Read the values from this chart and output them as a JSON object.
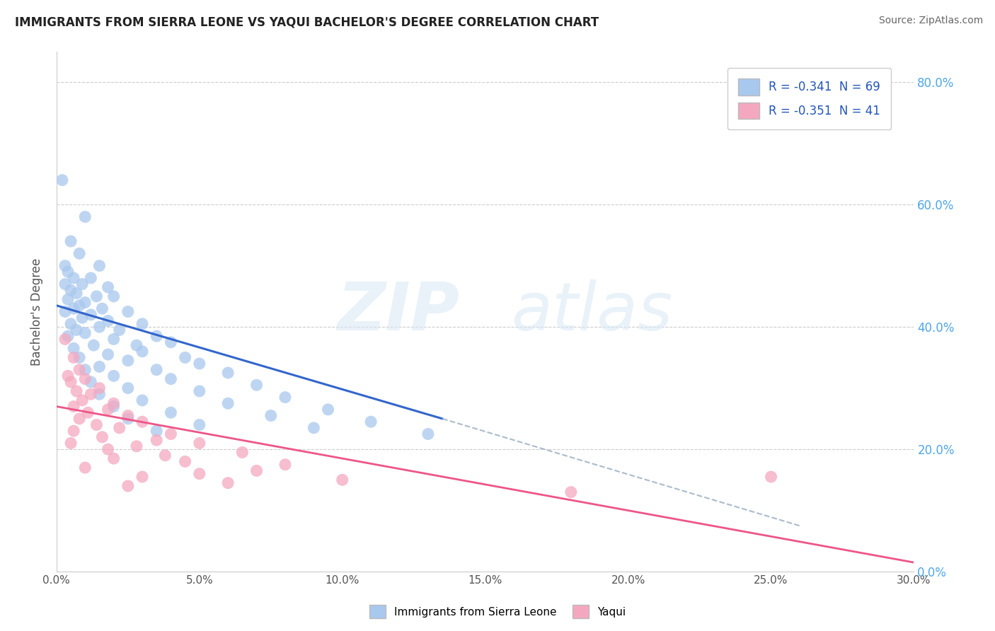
{
  "title": "IMMIGRANTS FROM SIERRA LEONE VS YAQUI BACHELOR'S DEGREE CORRELATION CHART",
  "source": "Source: ZipAtlas.com",
  "ylabel": "Bachelor's Degree",
  "legend_blue_label": "Immigrants from Sierra Leone",
  "legend_pink_label": "Yaqui",
  "R_blue": -0.341,
  "N_blue": 69,
  "R_pink": -0.351,
  "N_pink": 41,
  "watermark_zip": "ZIP",
  "watermark_atlas": "atlas",
  "blue_color": "#A8C8EE",
  "pink_color": "#F4A8C0",
  "blue_line_color": "#3366CC",
  "pink_line_color": "#EE5588",
  "dash_color": "#AABBCC",
  "blue_scatter": [
    [
      0.2,
      64.0
    ],
    [
      1.0,
      58.0
    ],
    [
      0.5,
      54.0
    ],
    [
      0.8,
      52.0
    ],
    [
      0.3,
      50.0
    ],
    [
      1.5,
      50.0
    ],
    [
      0.4,
      49.0
    ],
    [
      0.6,
      48.0
    ],
    [
      1.2,
      48.0
    ],
    [
      0.9,
      47.0
    ],
    [
      0.3,
      47.0
    ],
    [
      1.8,
      46.5
    ],
    [
      0.5,
      46.0
    ],
    [
      0.7,
      45.5
    ],
    [
      1.4,
      45.0
    ],
    [
      2.0,
      45.0
    ],
    [
      0.4,
      44.5
    ],
    [
      1.0,
      44.0
    ],
    [
      0.8,
      43.5
    ],
    [
      1.6,
      43.0
    ],
    [
      0.6,
      43.0
    ],
    [
      2.5,
      42.5
    ],
    [
      0.3,
      42.5
    ],
    [
      1.2,
      42.0
    ],
    [
      0.9,
      41.5
    ],
    [
      1.8,
      41.0
    ],
    [
      3.0,
      40.5
    ],
    [
      0.5,
      40.5
    ],
    [
      1.5,
      40.0
    ],
    [
      2.2,
      39.5
    ],
    [
      0.7,
      39.5
    ],
    [
      1.0,
      39.0
    ],
    [
      3.5,
      38.5
    ],
    [
      0.4,
      38.5
    ],
    [
      2.0,
      38.0
    ],
    [
      4.0,
      37.5
    ],
    [
      1.3,
      37.0
    ],
    [
      2.8,
      37.0
    ],
    [
      0.6,
      36.5
    ],
    [
      3.0,
      36.0
    ],
    [
      1.8,
      35.5
    ],
    [
      4.5,
      35.0
    ],
    [
      0.8,
      35.0
    ],
    [
      2.5,
      34.5
    ],
    [
      5.0,
      34.0
    ],
    [
      1.5,
      33.5
    ],
    [
      3.5,
      33.0
    ],
    [
      1.0,
      33.0
    ],
    [
      6.0,
      32.5
    ],
    [
      2.0,
      32.0
    ],
    [
      4.0,
      31.5
    ],
    [
      1.2,
      31.0
    ],
    [
      7.0,
      30.5
    ],
    [
      2.5,
      30.0
    ],
    [
      5.0,
      29.5
    ],
    [
      1.5,
      29.0
    ],
    [
      8.0,
      28.5
    ],
    [
      3.0,
      28.0
    ],
    [
      6.0,
      27.5
    ],
    [
      2.0,
      27.0
    ],
    [
      9.5,
      26.5
    ],
    [
      4.0,
      26.0
    ],
    [
      7.5,
      25.5
    ],
    [
      2.5,
      25.0
    ],
    [
      11.0,
      24.5
    ],
    [
      5.0,
      24.0
    ],
    [
      9.0,
      23.5
    ],
    [
      3.5,
      23.0
    ],
    [
      13.0,
      22.5
    ]
  ],
  "pink_scatter": [
    [
      0.3,
      38.0
    ],
    [
      0.6,
      35.0
    ],
    [
      0.8,
      33.0
    ],
    [
      0.4,
      32.0
    ],
    [
      1.0,
      31.5
    ],
    [
      0.5,
      31.0
    ],
    [
      1.5,
      30.0
    ],
    [
      0.7,
      29.5
    ],
    [
      1.2,
      29.0
    ],
    [
      0.9,
      28.0
    ],
    [
      2.0,
      27.5
    ],
    [
      0.6,
      27.0
    ],
    [
      1.8,
      26.5
    ],
    [
      1.1,
      26.0
    ],
    [
      2.5,
      25.5
    ],
    [
      0.8,
      25.0
    ],
    [
      3.0,
      24.5
    ],
    [
      1.4,
      24.0
    ],
    [
      2.2,
      23.5
    ],
    [
      0.6,
      23.0
    ],
    [
      4.0,
      22.5
    ],
    [
      1.6,
      22.0
    ],
    [
      3.5,
      21.5
    ],
    [
      0.5,
      21.0
    ],
    [
      5.0,
      21.0
    ],
    [
      2.8,
      20.5
    ],
    [
      1.8,
      20.0
    ],
    [
      6.5,
      19.5
    ],
    [
      3.8,
      19.0
    ],
    [
      2.0,
      18.5
    ],
    [
      4.5,
      18.0
    ],
    [
      8.0,
      17.5
    ],
    [
      1.0,
      17.0
    ],
    [
      7.0,
      16.5
    ],
    [
      5.0,
      16.0
    ],
    [
      3.0,
      15.5
    ],
    [
      10.0,
      15.0
    ],
    [
      6.0,
      14.5
    ],
    [
      2.5,
      14.0
    ],
    [
      25.0,
      15.5
    ],
    [
      18.0,
      13.0
    ]
  ],
  "blue_line_x0": 0.0,
  "blue_line_y0": 43.5,
  "blue_line_x1": 13.5,
  "blue_line_y1": 25.0,
  "blue_dash_x0": 13.5,
  "blue_dash_y0": 25.0,
  "blue_dash_x1": 26.0,
  "blue_dash_y1": 7.5,
  "pink_line_x0": 0.0,
  "pink_line_y0": 27.0,
  "pink_line_x1": 30.0,
  "pink_line_y1": 1.5,
  "xlim": [
    0.0,
    30.0
  ],
  "ylim": [
    0.0,
    85.0
  ],
  "xticks": [
    0.0,
    5.0,
    10.0,
    15.0,
    20.0,
    25.0,
    30.0
  ],
  "yticks": [
    0.0,
    20.0,
    40.0,
    60.0,
    80.0
  ],
  "ytick_labels_right": [
    "0.0%",
    "20.0%",
    "40.0%",
    "60.0%",
    "80.0%"
  ],
  "xtick_labels": [
    "0.0%",
    "5.0%",
    "10.0%",
    "15.0%",
    "20.0%",
    "25.0%",
    "30.0%"
  ]
}
